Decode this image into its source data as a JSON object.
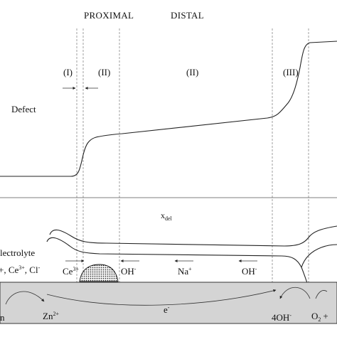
{
  "regions": {
    "proximal": "PROXIMAL",
    "distal": "DISTAL"
  },
  "zones": {
    "zone_1": "(I)",
    "zone_2a": "(II)",
    "zone_2b": "(II)",
    "zone_3": "(III)"
  },
  "labels": {
    "defect": "Defect",
    "x_del_main": "x",
    "x_del_sub": "del",
    "electrolyte": "lectrolyte",
    "ions_left": "+, Ce",
    "ions_left_sup": "3+",
    "ions_left_end": ", Cl",
    "ions_left_end_sup": "-"
  },
  "species": {
    "ce_main": "Ce",
    "ce_sup": "3+",
    "oh_1_main": "OH",
    "oh_1_sup": "-",
    "na_main": "Na",
    "na_sup": "+",
    "oh_2_main": "OH",
    "oh_2_sup": "-",
    "zn_main": "Zn",
    "zn_sup": "2+",
    "electron_main": "e",
    "electron_sup": "-",
    "hydroxide_main": "4OH",
    "hydroxide_sup": "-",
    "oxygen": "O",
    "oxygen_sub": "2",
    "oxygen_plus": "+",
    "zn_left": "n"
  },
  "colors": {
    "metal": "#d4d4d4",
    "line": "#222222",
    "guide": "#888888"
  }
}
